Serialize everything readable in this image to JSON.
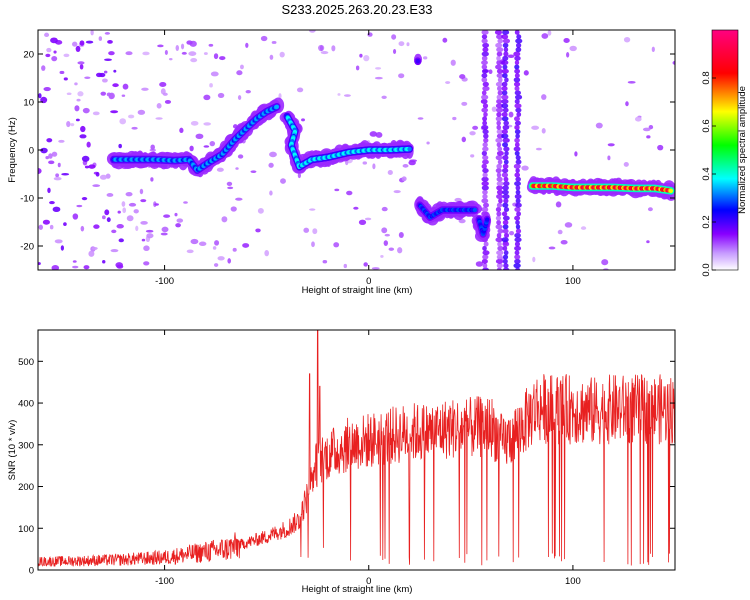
{
  "figure": {
    "title": "S233.2025.263.20.23.E33"
  },
  "chart_data": [
    {
      "type": "heatmap",
      "name": "spectrogram",
      "xlabel": "Height of straight line (km)",
      "ylabel": "Frequency (Hz)",
      "xlim": [
        -162,
        150
      ],
      "ylim": [
        -25,
        25
      ],
      "xticks": [
        -100,
        0,
        100
      ],
      "yticks": [
        -20,
        -10,
        0,
        10,
        20
      ],
      "colorbar": {
        "label": "Normalized spectral amplitude",
        "range": [
          0,
          1
        ],
        "ticks": [
          0.0,
          0.2,
          0.4,
          0.6,
          0.8
        ],
        "colors": [
          "#ffffff",
          "#8800ff",
          "#0000ff",
          "#00ffff",
          "#00ff00",
          "#ffff00",
          "#ff0000",
          "#ff0080"
        ]
      },
      "tracks": [
        {
          "name": "track-1",
          "points": [
            [
              -125,
              -2
            ],
            [
              -115,
              -2
            ],
            [
              -105,
              -2
            ],
            [
              -95,
              -2.2
            ],
            [
              -88,
              -2
            ],
            [
              -84,
              -4.2
            ],
            [
              -78,
              -2.5
            ],
            [
              -72,
              -1
            ],
            [
              -66,
              2
            ],
            [
              -60,
              4.5
            ],
            [
              -55,
              6.5
            ],
            [
              -50,
              8
            ],
            [
              -45,
              9
            ]
          ],
          "amplitude": 0.35
        },
        {
          "name": "track-2",
          "points": [
            [
              -40,
              7
            ],
            [
              -36,
              4
            ],
            [
              -38,
              1
            ],
            [
              -34,
              -3.5
            ],
            [
              -28,
              -2
            ],
            [
              -20,
              -1.5
            ],
            [
              -10,
              -0.5
            ],
            [
              0,
              0
            ],
            [
              10,
              0
            ],
            [
              20,
              0.2
            ]
          ],
          "amplitude": 0.4
        },
        {
          "name": "track-3",
          "points": [
            [
              25,
              -11.5
            ],
            [
              30,
              -14
            ],
            [
              36,
              -12.5
            ],
            [
              45,
              -12.5
            ],
            [
              52,
              -12.5
            ]
          ],
          "amplitude": 0.3
        },
        {
          "name": "track-4",
          "points": [
            [
              54,
              -14.5
            ],
            [
              56,
              -17.5
            ],
            [
              58,
              -14.5
            ]
          ],
          "amplitude": 0.3
        },
        {
          "name": "track-5",
          "points": [
            [
              80,
              -7.5
            ],
            [
              90,
              -7.5
            ],
            [
              100,
              -7.8
            ],
            [
              110,
              -7.8
            ],
            [
              120,
              -7.8
            ],
            [
              130,
              -8
            ],
            [
              140,
              -8
            ],
            [
              148,
              -8.5
            ]
          ],
          "amplitude": 0.85
        },
        {
          "name": "spike-1",
          "points": [
            [
              24,
              18.5
            ]
          ],
          "amplitude": 0.3
        }
      ],
      "vertical_streaks": [
        {
          "x": 57,
          "amplitude": 0.15
        },
        {
          "x": 64,
          "amplitude": 0.12
        },
        {
          "x": 67,
          "amplitude": 0.2
        },
        {
          "x": 73,
          "amplitude": 0.2
        }
      ]
    },
    {
      "type": "line",
      "name": "snr",
      "xlabel": "Height of straight line (km)",
      "ylabel": "SNR (10 * v/v)",
      "xlim": [
        -162,
        150
      ],
      "ylim": [
        0,
        575
      ],
      "xticks": [
        -100,
        0,
        100
      ],
      "yticks": [
        0,
        100,
        200,
        300,
        400,
        500
      ],
      "color": "#e82020",
      "series": [
        {
          "name": "SNR",
          "envelope": [
            [
              -162,
              20
            ],
            [
              -140,
              22
            ],
            [
              -120,
              25
            ],
            [
              -100,
              30
            ],
            [
              -85,
              40
            ],
            [
              -70,
              50
            ],
            [
              -60,
              65
            ],
            [
              -50,
              80
            ],
            [
              -40,
              100
            ],
            [
              -34,
              120
            ],
            [
              -30,
              180
            ],
            [
              -26,
              250
            ],
            [
              -22,
              270
            ],
            [
              -18,
              280
            ],
            [
              -10,
              300
            ],
            [
              0,
              310
            ],
            [
              10,
              320
            ],
            [
              20,
              330
            ],
            [
              30,
              330
            ],
            [
              40,
              340
            ],
            [
              50,
              340
            ],
            [
              60,
              345
            ],
            [
              66,
              300
            ],
            [
              70,
              320
            ],
            [
              76,
              350
            ],
            [
              82,
              390
            ],
            [
              90,
              385
            ],
            [
              100,
              385
            ],
            [
              110,
              380
            ],
            [
              120,
              385
            ],
            [
              130,
              385
            ],
            [
              140,
              385
            ],
            [
              150,
              385
            ]
          ]
        }
      ],
      "spikes": [
        [
          -29,
          470
        ],
        [
          -25,
          575
        ],
        [
          -24,
          440
        ]
      ],
      "dropout_start_km": 0
    }
  ]
}
